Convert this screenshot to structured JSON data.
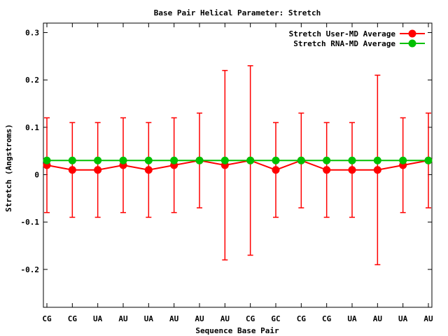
{
  "chart_data": {
    "type": "line",
    "title": "Base Pair Helical Parameter: Stretch",
    "xlabel": "Sequence Base Pair",
    "ylabel": "Stretch (Angstroms)",
    "categories": [
      "CG",
      "CG",
      "UA",
      "AU",
      "UA",
      "AU",
      "AU",
      "AU",
      "CG",
      "GC",
      "CG",
      "CG",
      "UA",
      "AU",
      "UA",
      "AU"
    ],
    "ylim": [
      -0.28,
      0.32
    ],
    "yticks": [
      -0.2,
      -0.1,
      0,
      0.1,
      0.2,
      0.3
    ],
    "ytick_labels": [
      "-0.2",
      "-0.1",
      "0",
      "0.1",
      "0.2",
      "0.3"
    ],
    "grid": false,
    "legend_position": "top-right",
    "series": [
      {
        "name": "Stretch User-MD Average",
        "color": "#ff0000",
        "values": [
          0.02,
          0.01,
          0.01,
          0.02,
          0.01,
          0.02,
          0.03,
          0.02,
          0.03,
          0.01,
          0.03,
          0.01,
          0.01,
          0.01,
          0.02,
          0.03
        ],
        "error_low": [
          -0.08,
          -0.09,
          -0.09,
          -0.08,
          -0.09,
          -0.08,
          -0.07,
          -0.18,
          -0.17,
          -0.09,
          -0.07,
          -0.09,
          -0.09,
          -0.19,
          -0.08,
          -0.07
        ],
        "error_high": [
          0.12,
          0.11,
          0.11,
          0.12,
          0.11,
          0.12,
          0.13,
          0.22,
          0.23,
          0.11,
          0.13,
          0.11,
          0.11,
          0.21,
          0.12,
          0.13
        ]
      },
      {
        "name": "Stretch RNA-MD Average",
        "color": "#00c000",
        "values": [
          0.03,
          0.03,
          0.03,
          0.03,
          0.03,
          0.03,
          0.03,
          0.03,
          0.03,
          0.03,
          0.03,
          0.03,
          0.03,
          0.03,
          0.03,
          0.03
        ]
      }
    ]
  }
}
